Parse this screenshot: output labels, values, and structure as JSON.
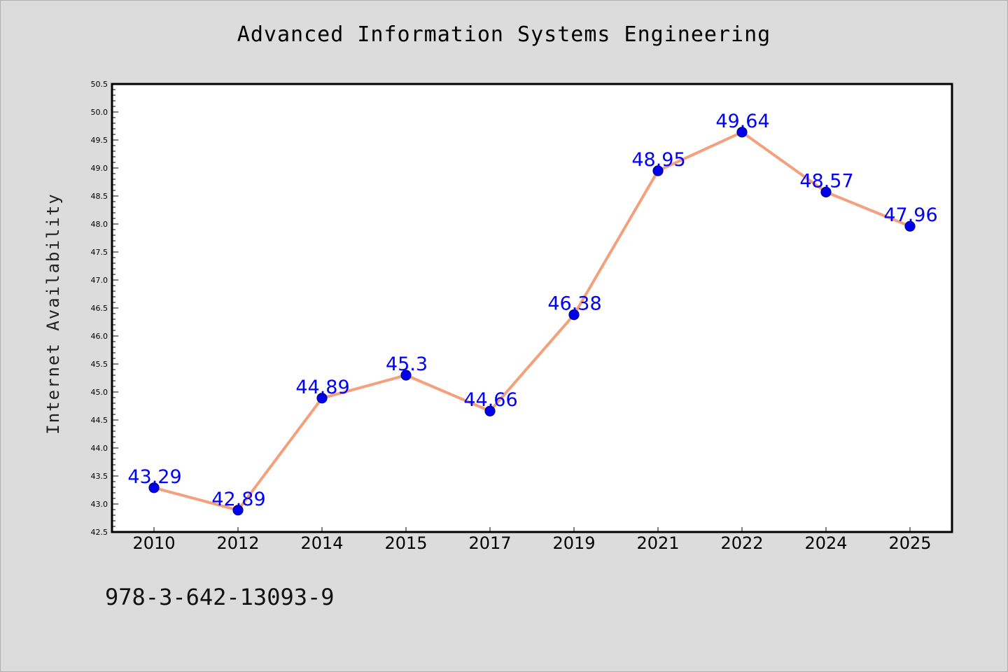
{
  "page": {
    "background": "#dcdcdc",
    "footer_code": "978-3-642-13093-9"
  },
  "chart_data": {
    "type": "line",
    "title": "Advanced Information Systems Engineering",
    "xlabel": "",
    "ylabel": "Internet Availability",
    "categories": [
      "2010",
      "2012",
      "2014",
      "2015",
      "2017",
      "2019",
      "2021",
      "2022",
      "2024",
      "2025"
    ],
    "series": [
      {
        "values": [
          43.29,
          42.89,
          44.89,
          45.3,
          44.66,
          46.38,
          48.95,
          49.64,
          48.57,
          47.96
        ],
        "data_labels": [
          "43.29",
          "42.89",
          "44.89",
          "45.3",
          "44.66",
          "46.38",
          "48.95",
          "49.64",
          "48.57",
          "47.96"
        ],
        "line_color": "#f4a07c",
        "marker_color": "#0000ee",
        "marker_edge_color": "#000080",
        "label_color": "#0000ff"
      }
    ],
    "ylim": [
      42.5,
      50.5
    ],
    "yticks": [
      "42.5",
      "43.0",
      "43.5",
      "44.0",
      "44.5",
      "45.0",
      "45.5",
      "46.0",
      "46.5",
      "47.0",
      "47.5",
      "48.0",
      "48.5",
      "49.0",
      "49.5",
      "50.0",
      "50.5"
    ],
    "grid": false,
    "legend": "none",
    "plot_background": "#ffffff"
  }
}
